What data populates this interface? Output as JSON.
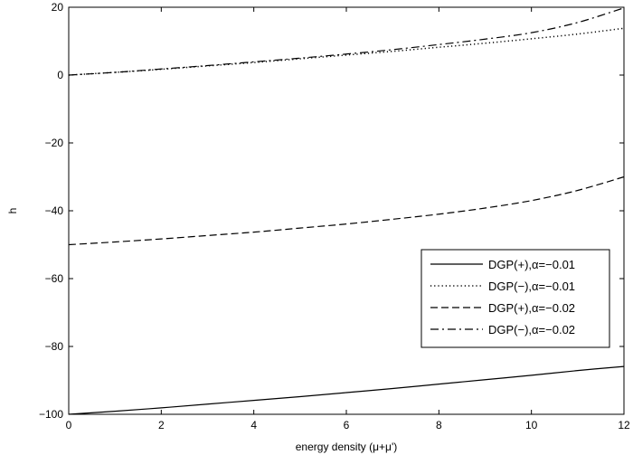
{
  "chart_data": {
    "type": "line",
    "title": "",
    "xlabel": "energy density (μ+μ')",
    "ylabel": "h",
    "xlim": [
      0,
      12
    ],
    "ylim": [
      -100,
      20
    ],
    "xticks": [
      0,
      2,
      4,
      6,
      8,
      10,
      12
    ],
    "yticks": [
      -100,
      -80,
      -60,
      -40,
      -20,
      0,
      20
    ],
    "xtick_labels": [
      "0",
      "2",
      "4",
      "6",
      "8",
      "10",
      "12"
    ],
    "ytick_labels": [
      "−100",
      "−80",
      "−60",
      "−40",
      "−20",
      "0",
      "20"
    ],
    "grid": false,
    "legend_position": "center-right",
    "x": [
      0,
      1,
      2,
      3,
      4,
      5,
      6,
      7,
      8,
      9,
      10,
      11,
      12
    ],
    "series": [
      {
        "name": "DGP(+),α=−0.01",
        "style": "solid",
        "color": "#000000",
        "values": [
          -100,
          -99.1,
          -98.1,
          -97.0,
          -95.9,
          -94.8,
          -93.6,
          -92.4,
          -91.1,
          -89.8,
          -88.5,
          -87.1,
          -85.9
        ]
      },
      {
        "name": "DGP(−),α=−0.01",
        "style": "dotted",
        "color": "#000000",
        "values": [
          0,
          0.8,
          1.7,
          2.7,
          3.7,
          4.8,
          5.9,
          7.0,
          8.2,
          9.4,
          10.7,
          12.1,
          13.8
        ]
      },
      {
        "name": "DGP(+),α=−0.02",
        "style": "dashed",
        "color": "#000000",
        "values": [
          -50,
          -49.2,
          -48.3,
          -47.3,
          -46.3,
          -45.1,
          -43.9,
          -42.5,
          -41.0,
          -39.2,
          -37.0,
          -34.0,
          -30.0
        ]
      },
      {
        "name": "DGP(−),α=−0.02",
        "style": "dashdot",
        "color": "#000000",
        "values": [
          0,
          0.8,
          1.8,
          2.8,
          3.9,
          5.0,
          6.2,
          7.5,
          9.0,
          10.6,
          12.5,
          15.5,
          19.8
        ]
      }
    ]
  }
}
